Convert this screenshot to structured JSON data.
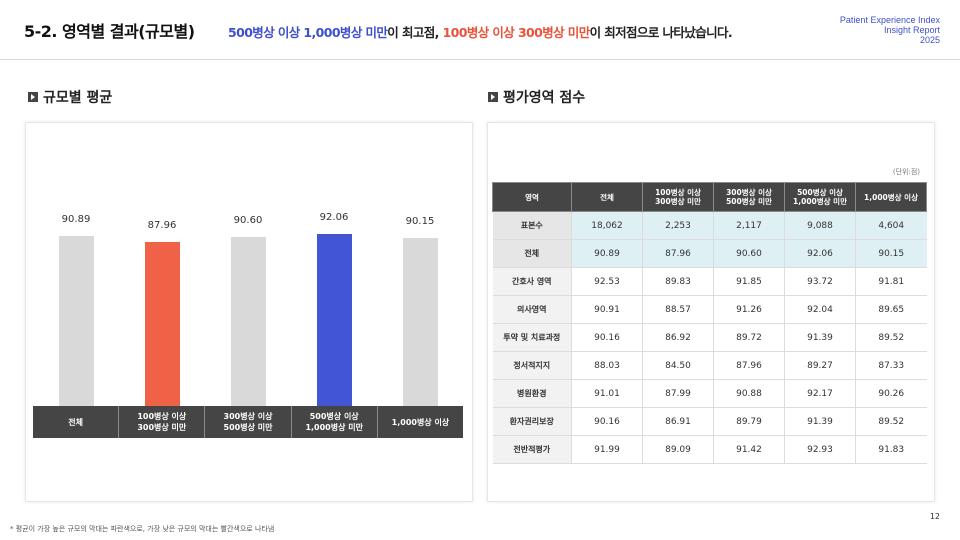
{
  "header": {
    "title": "5-2. 영역별 결과(규모별)",
    "subtitle_parts": [
      {
        "text": "500병상 이상 1,000병상 미만",
        "color": "blue"
      },
      {
        "text": "이 최고점, ",
        "color": "dark"
      },
      {
        "text": "100병상 이상 300병상 미만",
        "color": "red"
      },
      {
        "text": "이 최저점으로 나타났습니다.",
        "color": "dark"
      }
    ],
    "report_lines": [
      "Patient Experience Index",
      "Insight Report",
      "2025"
    ]
  },
  "left_section": {
    "title": "규모별 평균"
  },
  "right_section": {
    "title": "평가영역 점수",
    "unit": "(단위:점)"
  },
  "colors": {
    "gray": "#d9d9d9",
    "red": "#ef6248",
    "blue": "#4255d4",
    "axis_bg": "#454545",
    "accent_blue": "#3f50cc"
  },
  "chart_data": {
    "type": "bar",
    "categories": [
      "전체",
      "100병상 이상\n300병상 미만",
      "300병상 이상\n500병상 미만",
      "500병상 이상\n1,000병상 미만",
      "1,000병상 이상"
    ],
    "values": [
      90.89,
      87.96,
      90.6,
      92.06,
      90.15
    ],
    "value_labels": [
      "90.89",
      "87.96",
      "90.60",
      "92.06",
      "90.15"
    ],
    "bar_colors": [
      "#d9d9d9",
      "#ef6248",
      "#d9d9d9",
      "#4255d4",
      "#d9d9d9"
    ],
    "title": "",
    "xlabel": "",
    "ylabel": "",
    "grid": false
  },
  "table": {
    "headers": [
      "영역",
      "전체",
      "100병상 이상\n300병상 미만",
      "300병상 이상\n500병상 미만",
      "500병상 이상\n1,000병상 미만",
      "1,000병상 이상"
    ],
    "rows": [
      {
        "label": "표본수",
        "values": [
          "18,062",
          "2,253",
          "2,117",
          "9,088",
          "4,604"
        ],
        "highlight": true
      },
      {
        "label": "전체",
        "values": [
          "90.89",
          "87.96",
          "90.60",
          "92.06",
          "90.15"
        ],
        "highlight": true
      },
      {
        "label": "간호사 영역",
        "values": [
          "92.53",
          "89.83",
          "91.85",
          "93.72",
          "91.81"
        ],
        "highlight": false
      },
      {
        "label": "의사영역",
        "values": [
          "90.91",
          "88.57",
          "91.26",
          "92.04",
          "89.65"
        ],
        "highlight": false
      },
      {
        "label": "투약 및 치료과정",
        "values": [
          "90.16",
          "86.92",
          "89.72",
          "91.39",
          "89.52"
        ],
        "highlight": false
      },
      {
        "label": "정서적지지",
        "values": [
          "88.03",
          "84.50",
          "87.96",
          "89.27",
          "87.33"
        ],
        "highlight": false
      },
      {
        "label": "병원환경",
        "values": [
          "91.01",
          "87.99",
          "90.88",
          "92.17",
          "90.26"
        ],
        "highlight": false
      },
      {
        "label": "환자권리보장",
        "values": [
          "90.16",
          "86.91",
          "89.79",
          "91.39",
          "89.52"
        ],
        "highlight": false
      },
      {
        "label": "전반적평가",
        "values": [
          "91.99",
          "89.09",
          "91.42",
          "92.93",
          "91.83"
        ],
        "highlight": false
      }
    ]
  },
  "footnote": "* 평균이 가장 높은 규모의 막대는 파란색으로, 가장 낮은 규모의 막대는 빨간색으로 나타냄",
  "page_number": "12"
}
